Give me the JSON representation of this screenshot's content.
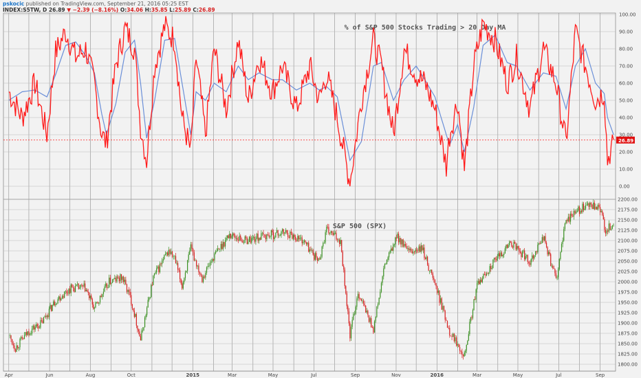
{
  "header": {
    "author": "pskocic",
    "published": "published on TradingView.com, September 21, 2016 05:25 EST",
    "symbol": "INDEX:S5TW, D",
    "last": "26.89",
    "change": "−2.39 (−8.16%)",
    "open_label": "O:",
    "open": "34.06",
    "high_label": "H:",
    "high": "35.85",
    "low_label": "L:",
    "low": "25.89",
    "close_label": "C:",
    "close": "26.89"
  },
  "colors": {
    "background": "#f2f2f2",
    "grid": "#8c8c8c",
    "breadth_line": "#ff1a1a",
    "ma_line": "#6a8fd8",
    "candle_up": "#3a8f22",
    "candle_down": "#d62020",
    "price_tag": "#e01010"
  },
  "chart_data": [
    {
      "type": "line",
      "title": "% of S&P 500 Stocks Trading > 20 Day MA",
      "ylim": [
        0,
        100
      ],
      "y_ticks": [
        "100.00",
        "90.00",
        "80.00",
        "70.00",
        "60.00",
        "50.00",
        "40.00",
        "30.00",
        "20.00",
        "10.00",
        "0.00"
      ],
      "last_value_label": "26.89",
      "reference_line": 26.89,
      "x": [
        "2014-04-01",
        "2014-04-21",
        "2014-05-10",
        "2014-05-28",
        "2014-06-10",
        "2014-06-25",
        "2014-07-10",
        "2014-07-25",
        "2014-08-07",
        "2014-08-18",
        "2014-08-25",
        "2014-09-08",
        "2014-09-22",
        "2014-10-06",
        "2014-10-15",
        "2014-10-24",
        "2014-11-05",
        "2014-11-20",
        "2014-12-05",
        "2014-12-16",
        "2014-12-29",
        "2015-01-06",
        "2015-01-20",
        "2015-02-02",
        "2015-02-20",
        "2015-03-10",
        "2015-03-25",
        "2015-04-10",
        "2015-04-30",
        "2015-05-15",
        "2015-06-05",
        "2015-06-25",
        "2015-07-09",
        "2015-07-20",
        "2015-08-05",
        "2015-08-24",
        "2015-09-10",
        "2015-09-28",
        "2015-10-10",
        "2015-10-28",
        "2015-11-13",
        "2015-12-01",
        "2015-12-14",
        "2015-12-29",
        "2016-01-15",
        "2016-01-20",
        "2016-02-01",
        "2016-02-11",
        "2016-02-25",
        "2016-03-10",
        "2016-03-28",
        "2016-04-15",
        "2016-04-29",
        "2016-05-19",
        "2016-06-08",
        "2016-06-27",
        "2016-07-12",
        "2016-07-26",
        "2016-08-10",
        "2016-08-25",
        "2016-09-07",
        "2016-09-12",
        "2016-09-21"
      ],
      "series": [
        {
          "name": "",
          "values": [
            55,
            40,
            60,
            30,
            78,
            90,
            75,
            80,
            60,
            30,
            25,
            70,
            92,
            80,
            35,
            15,
            70,
            93,
            85,
            40,
            20,
            75,
            30,
            80,
            45,
            85,
            50,
            75,
            55,
            70,
            45,
            70,
            50,
            65,
            40,
            2,
            50,
            85,
            70,
            30,
            80,
            65,
            60,
            45,
            12,
            30,
            50,
            10,
            70,
            95,
            85,
            60,
            75,
            45,
            80,
            60,
            25,
            90,
            70,
            50,
            55,
            15,
            27
          ]
        },
        {
          "name": "",
          "values": [
            50,
            55,
            56,
            52,
            65,
            82,
            84,
            76,
            66,
            42,
            30,
            48,
            78,
            85,
            60,
            28,
            50,
            85,
            86,
            60,
            30,
            55,
            50,
            60,
            55,
            70,
            62,
            66,
            62,
            62,
            56,
            60,
            56,
            58,
            52,
            15,
            26,
            70,
            72,
            50,
            62,
            70,
            62,
            52,
            30,
            24,
            36,
            20,
            46,
            82,
            88,
            72,
            70,
            56,
            66,
            64,
            45,
            70,
            80,
            60,
            54,
            40,
            30
          ]
        }
      ]
    },
    {
      "type": "candlestick",
      "title": "S&P 500 (SPX)",
      "ylim": [
        1800,
        2200
      ],
      "y_ticks": [
        "2200.00",
        "2175.00",
        "2150.00",
        "2125.00",
        "2100.00",
        "2075.00",
        "2050.00",
        "2025.00",
        "2000.00",
        "1975.00",
        "1950.00",
        "1925.00",
        "1900.00",
        "1875.00",
        "1850.00",
        "1825.00",
        "1800.00"
      ],
      "x_ticks": [
        "Apr",
        "Jun",
        "Aug",
        "Oct",
        "2015",
        "Mar",
        "May",
        "Jul",
        "Sep",
        "Nov",
        "2016",
        "Mar",
        "May",
        "Jul",
        "Sep"
      ],
      "x": [
        "2014-04-01",
        "2014-04-11",
        "2014-05-01",
        "2014-05-20",
        "2014-06-10",
        "2014-07-03",
        "2014-07-24",
        "2014-08-07",
        "2014-08-29",
        "2014-09-18",
        "2014-10-01",
        "2014-10-15",
        "2014-11-03",
        "2014-11-26",
        "2014-12-05",
        "2014-12-16",
        "2014-12-29",
        "2015-01-15",
        "2015-02-01",
        "2015-02-25",
        "2015-03-20",
        "2015-04-15",
        "2015-05-20",
        "2015-06-15",
        "2015-07-08",
        "2015-07-20",
        "2015-08-10",
        "2015-08-24",
        "2015-09-05",
        "2015-09-28",
        "2015-10-15",
        "2015-11-03",
        "2015-11-20",
        "2015-12-10",
        "2015-12-29",
        "2016-01-20",
        "2016-02-11",
        "2016-03-01",
        "2016-03-20",
        "2016-04-20",
        "2016-05-19",
        "2016-06-08",
        "2016-06-27",
        "2016-07-12",
        "2016-08-01",
        "2016-08-15",
        "2016-09-01",
        "2016-09-09",
        "2016-09-21"
      ],
      "close": [
        1870,
        1840,
        1880,
        1900,
        1955,
        1985,
        1985,
        1935,
        2000,
        2010,
        1955,
        1860,
        2010,
        2075,
        2055,
        1990,
        2080,
        2010,
        2060,
        2115,
        2100,
        2110,
        2120,
        2100,
        2050,
        2125,
        2100,
        1870,
        1975,
        1885,
        2040,
        2110,
        2070,
        2080,
        1995,
        1880,
        1825,
        1990,
        2035,
        2095,
        2050,
        2110,
        2005,
        2150,
        2175,
        2185,
        2175,
        2125,
        2140
      ]
    }
  ]
}
